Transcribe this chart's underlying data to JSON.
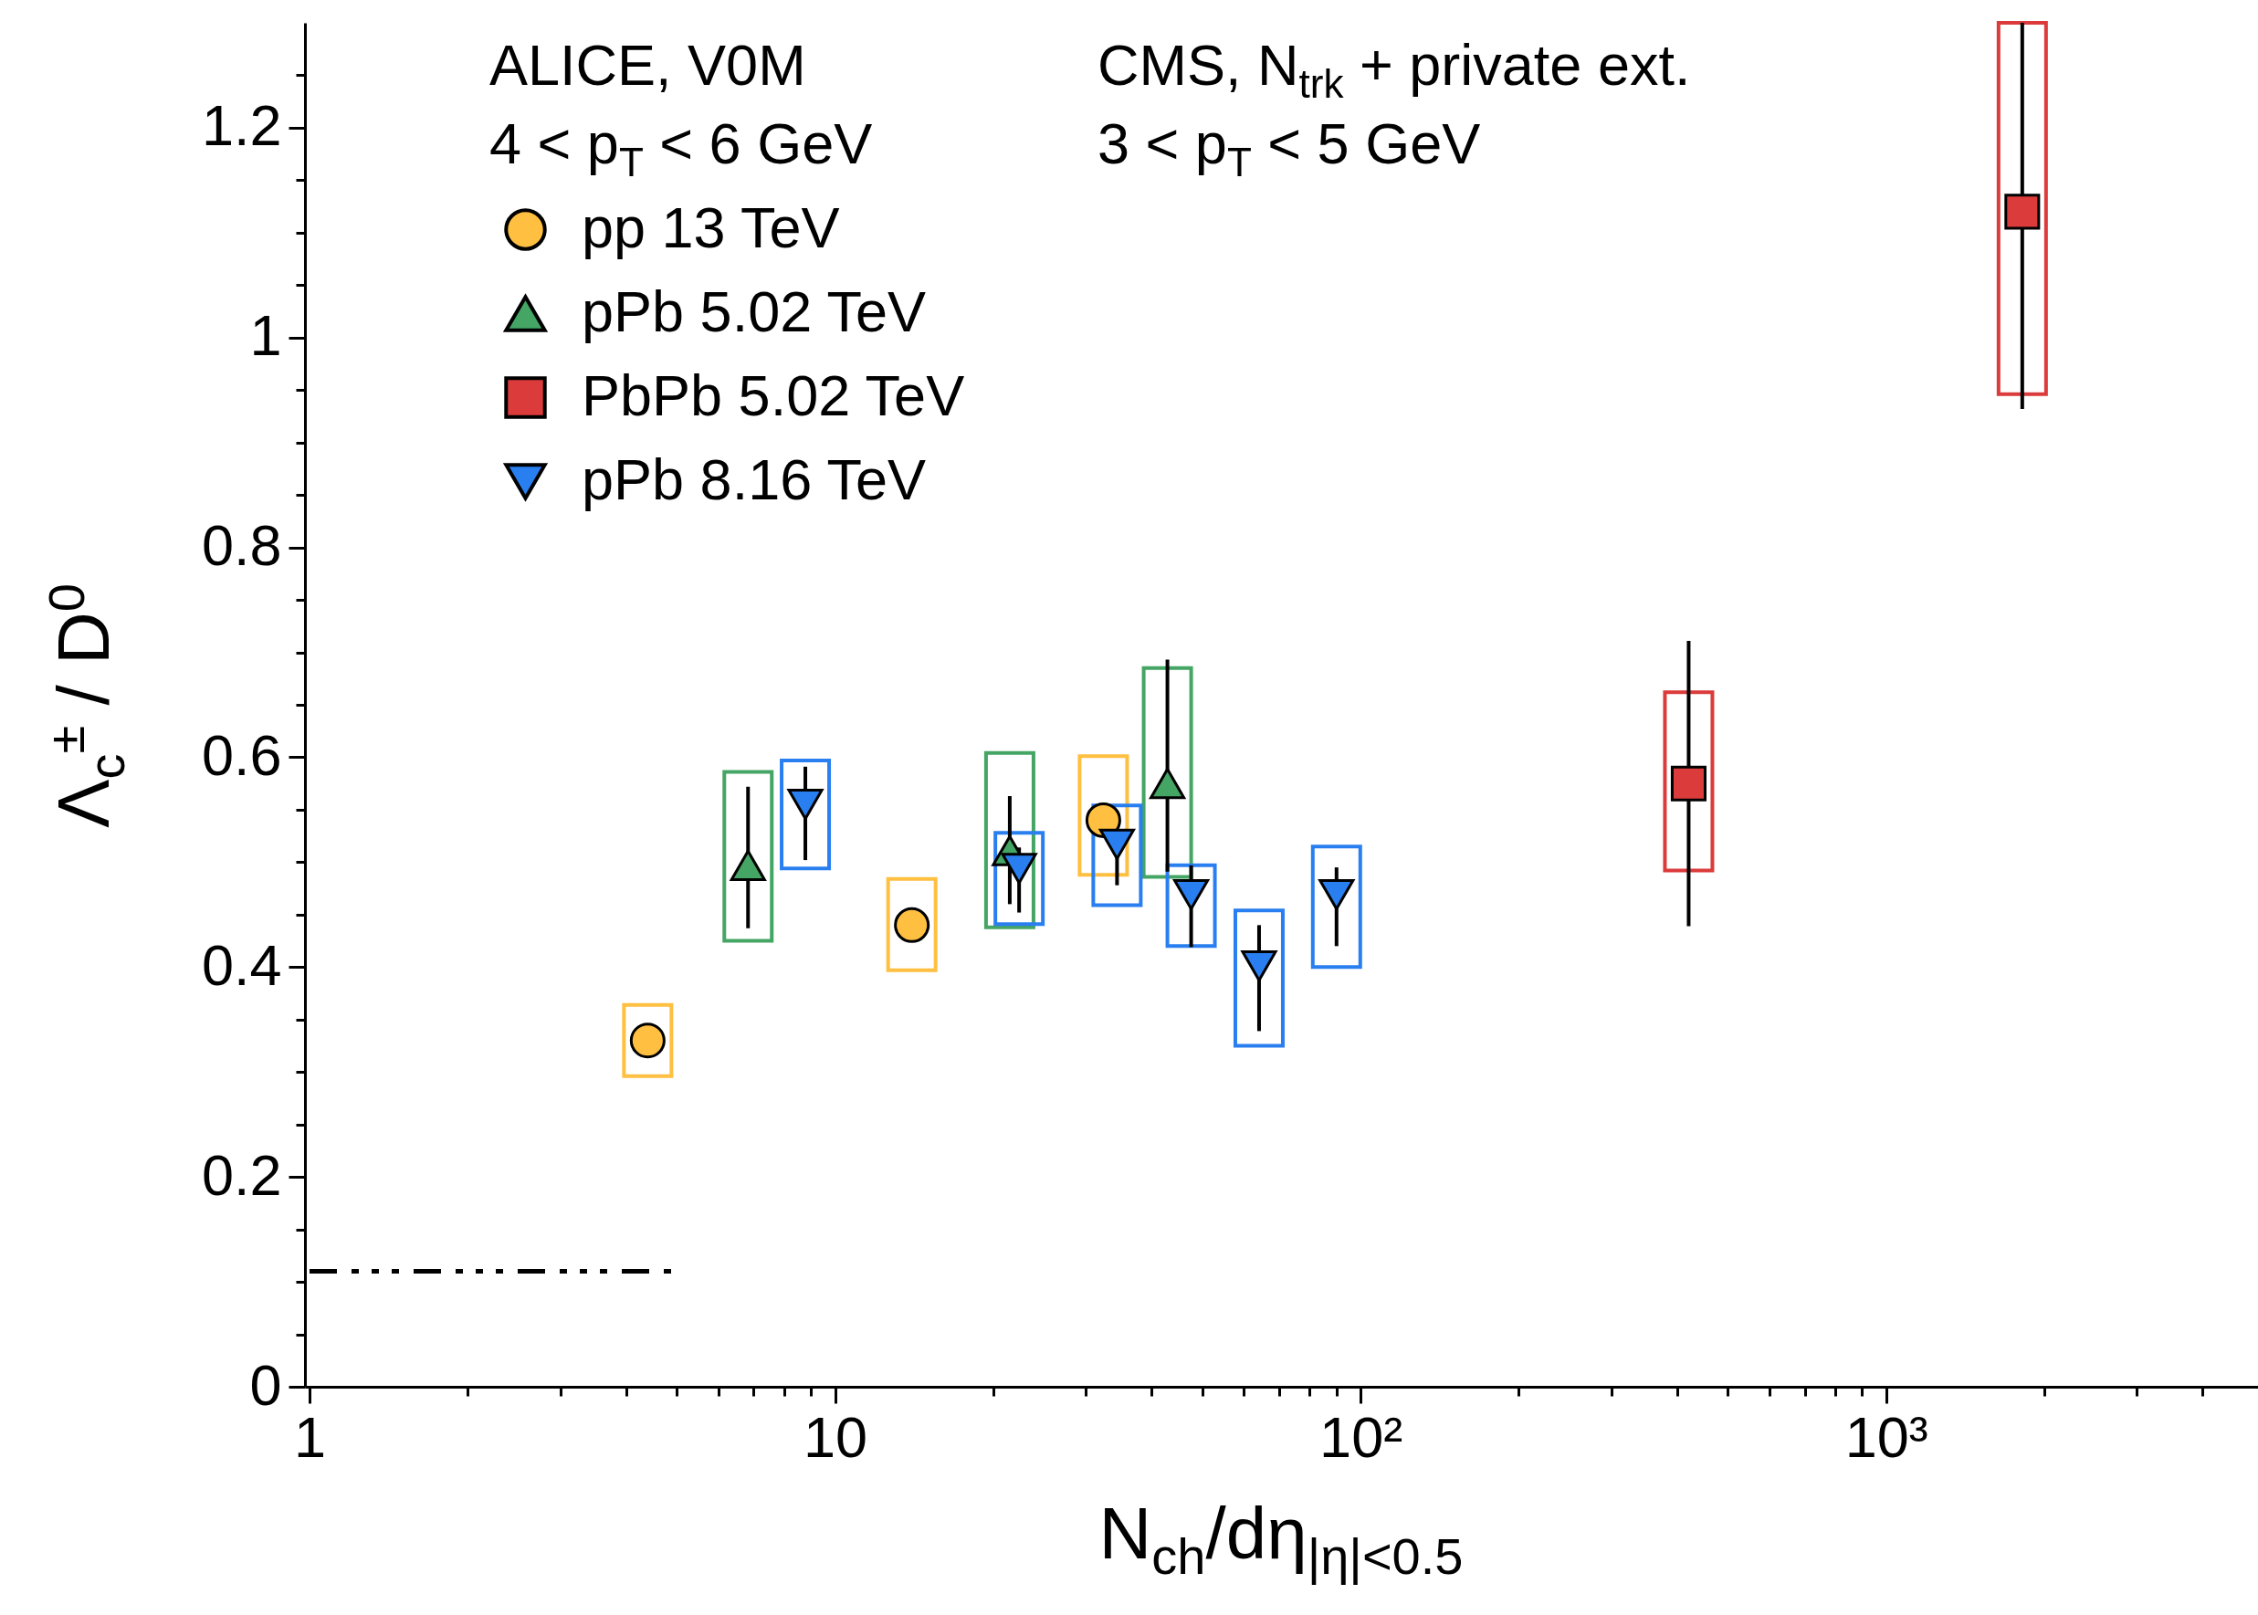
{
  "chart_data": {
    "type": "scatter",
    "xlabel": "N$_{ch}$/dη$_{|η|<0.5}$",
    "ylabel": "Λ$_{c}$$^{±}$ / D$^{0}$",
    "log": "x",
    "legend": "top left",
    "annotations": [
      "ALICE, V0M",
      "4 < p$_{T}$ < 6 GeV",
      "CMS, N$_{trk}$ + private ext.",
      "3 < p$_{T}$ < 5 GeV"
    ],
    "xlim": [
      1,
      5000
    ],
    "ylim": [
      0,
      1.3
    ],
    "xticks": [
      1,
      {
        "value": 2,
        "label": null
      },
      {
        "value": 3,
        "label": null
      },
      {
        "value": 4,
        "label": null
      },
      {
        "value": 5,
        "label": null
      },
      {
        "value": 6,
        "label": null
      },
      {
        "value": 7,
        "label": null
      },
      {
        "value": 8,
        "label": null
      },
      {
        "value": 9,
        "label": null
      },
      10,
      {
        "value": 20,
        "label": null
      },
      {
        "value": 30,
        "label": null
      },
      {
        "value": 40,
        "label": null
      },
      {
        "value": 50,
        "label": null
      },
      {
        "value": 60,
        "label": null
      },
      {
        "value": 70,
        "label": null
      },
      {
        "value": 80,
        "label": null
      },
      {
        "value": 90,
        "label": null
      },
      {
        "value": 100,
        "label": "10²"
      },
      {
        "value": 200,
        "label": null
      },
      {
        "value": 300,
        "label": null
      },
      {
        "value": 400,
        "label": null
      },
      {
        "value": 500,
        "label": null
      },
      {
        "value": 600,
        "label": null
      },
      {
        "value": 700,
        "label": null
      },
      {
        "value": 800,
        "label": null
      },
      {
        "value": 900,
        "label": null
      },
      {
        "value": 1000,
        "label": "10³"
      },
      {
        "value": 2000,
        "label": null
      },
      {
        "value": 3000,
        "label": null
      },
      {
        "value": 4000,
        "label": null
      }
    ],
    "yticks": [
      0,
      {
        "value": 0.05,
        "label": null
      },
      {
        "value": 0.1,
        "label": null
      },
      {
        "value": 0.15,
        "label": null
      },
      0.2,
      {
        "value": 0.25,
        "label": null
      },
      {
        "value": 0.3,
        "label": null
      },
      {
        "value": 0.35,
        "label": null
      },
      0.4,
      {
        "value": 0.45,
        "label": null
      },
      {
        "value": 0.5,
        "label": null
      },
      {
        "value": 0.55,
        "label": null
      },
      0.6,
      {
        "value": 0.65,
        "label": null
      },
      {
        "value": 0.7,
        "label": null
      },
      {
        "value": 0.75,
        "label": null
      },
      0.8,
      {
        "value": 0.85,
        "label": null
      },
      {
        "value": 0.9,
        "label": null
      },
      {
        "value": 0.95,
        "label": null
      },
      1,
      {
        "value": 1.05,
        "label": null
      },
      {
        "value": 1.1,
        "label": null
      },
      {
        "value": 1.15,
        "label": null
      },
      1.2,
      {
        "value": 1.25,
        "label": null
      }
    ],
    "series": [
      {
        "type": "bar",
        "color": "#ffbf40",
        "x": [
          4.4,
          14.0,
          32.4
        ],
        "base": [
          0.296,
          0.397,
          0.488
        ],
        "values": [
          0.068,
          0.087,
          0.113
        ]
      },
      {
        "type": "bar",
        "color": "#44a564",
        "x": [
          6.83,
          21.5,
          42.9
        ],
        "base": [
          0.425,
          0.438,
          0.486
        ],
        "values": [
          0.161,
          0.166,
          0.199
        ]
      },
      {
        "type": "bar",
        "color": "#2a7ff0",
        "x": [
          8.78,
          22.4,
          34.4,
          47.6,
          64.1,
          90.0
        ],
        "base": [
          0.494,
          0.441,
          0.459,
          0.42,
          0.325,
          0.4
        ],
        "values": [
          0.103,
          0.087,
          0.095,
          0.077,
          0.129,
          0.115
        ]
      },
      {
        "type": "bar",
        "color": "#db3b3b",
        "x": [
          421,
          1816
        ],
        "base": [
          0.492,
          0.946
        ],
        "values": [
          0.17,
          0.354
        ]
      },
      {
        "type": "line",
        "color": "#000000",
        "line_style": "dashed",
        "x": [
          1,
          5
        ],
        "values": [
          0.11,
          0.11
        ]
      },
      {
        "name": "pp 13 TeV",
        "type": "scatter",
        "marker": "circle",
        "color": "#ffbf40",
        "x": [
          4.4,
          14.0,
          32.4
        ],
        "values": [
          0.33,
          0.44,
          0.54
        ],
        "errors": [
          null,
          null,
          null
        ]
      },
      {
        "name": "pPb 5.02 TeV",
        "type": "scatter",
        "marker": "triangle",
        "color": "#44a564",
        "x": [
          6.83,
          21.5,
          42.9
        ],
        "values": [
          0.497,
          0.511,
          0.575
        ],
        "errors": [
          [
            0.437,
            0.572
          ],
          [
            0.46,
            0.563
          ],
          [
            0.491,
            0.693
          ]
        ]
      },
      {
        "name": "PbPb 5.02 TeV",
        "type": "scatter",
        "marker": "square",
        "color": "#db3b3b",
        "x": [
          421,
          1816
        ],
        "values": [
          0.575,
          1.12
        ],
        "errors": [
          [
            0.439,
            0.711
          ],
          [
            0.932,
            1.3
          ]
        ]
      },
      {
        "name": "pPb 8.16 TeV",
        "type": "scatter",
        "marker": "triangle-down",
        "color": "#2a7ff0",
        "x": [
          8.78,
          22.4,
          34.4,
          47.6,
          64.1,
          90.0
        ],
        "values": [
          0.555,
          0.494,
          0.517,
          0.469,
          0.401,
          0.469
        ],
        "errors": [
          [
            0.502,
            0.591
          ],
          [
            0.452,
            0.514
          ],
          [
            0.478,
            0.537
          ],
          [
            0.419,
            0.497
          ],
          [
            0.339,
            0.44
          ],
          [
            0.42,
            0.495
          ]
        ]
      }
    ]
  }
}
